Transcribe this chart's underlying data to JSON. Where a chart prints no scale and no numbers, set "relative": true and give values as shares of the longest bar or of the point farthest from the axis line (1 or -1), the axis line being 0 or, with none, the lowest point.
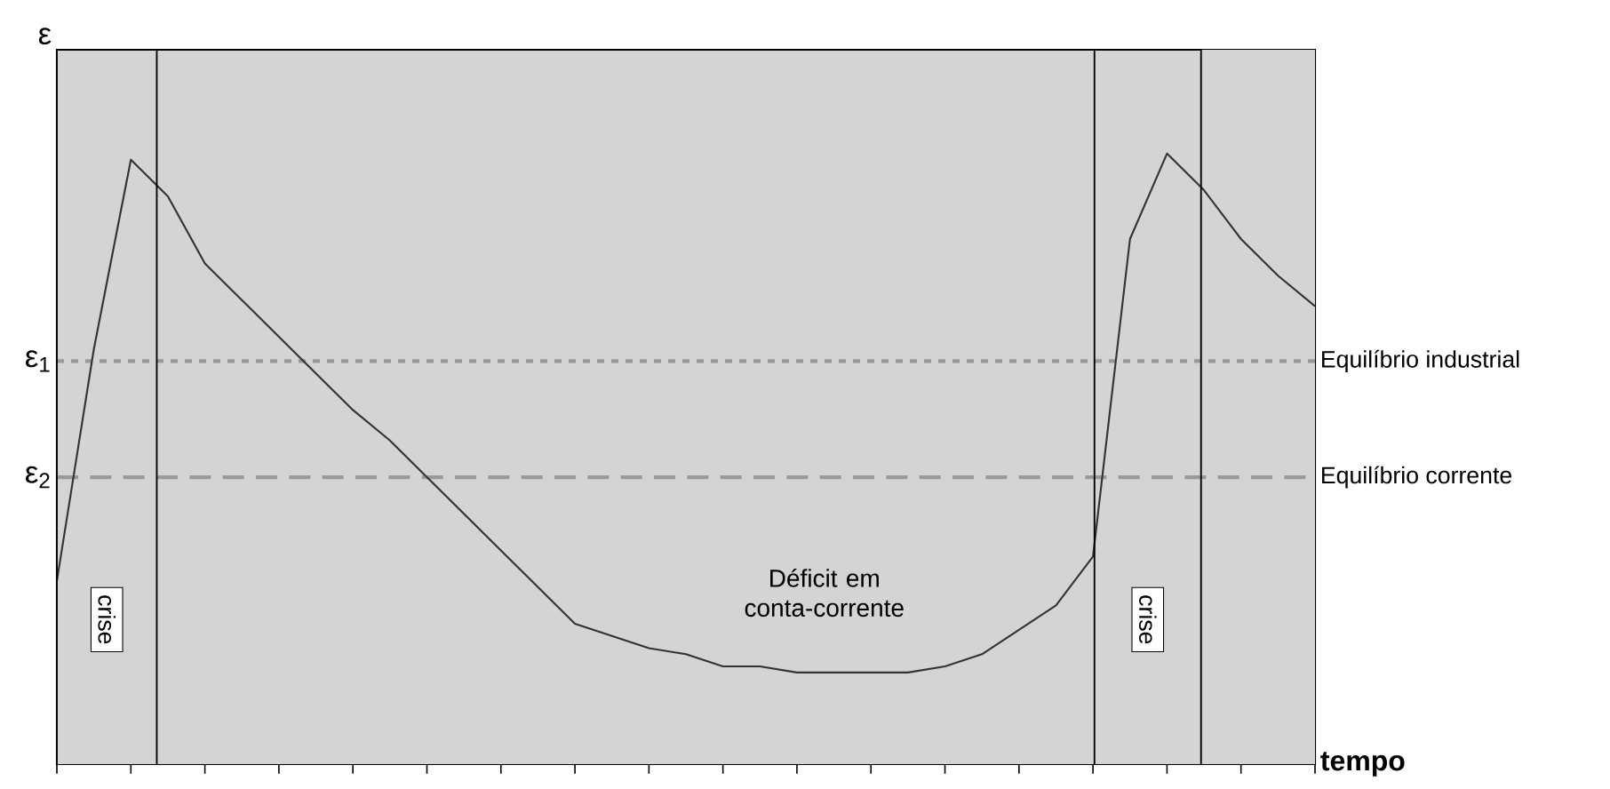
{
  "chart_data": {
    "type": "line",
    "relative": true,
    "xlabel": "tempo",
    "ylabel": "ε",
    "categories": [
      null,
      null,
      null,
      null,
      null,
      null,
      null,
      null,
      null,
      null,
      null,
      null,
      null,
      null,
      null,
      null,
      null,
      null,
      null,
      null,
      null,
      null,
      null,
      null,
      null,
      null,
      null,
      null,
      null,
      null,
      null,
      null,
      null,
      null,
      null
    ],
    "series": [
      {
        "color": "#333333",
        "values": [
          0.3,
          0.68,
          0.99,
          0.93,
          0.82,
          0.76,
          0.7,
          0.64,
          0.58,
          0.53,
          0.47,
          0.41,
          0.35,
          0.29,
          0.23,
          0.21,
          0.19,
          0.18,
          0.16,
          0.16,
          0.15,
          0.15,
          0.15,
          0.15,
          0.16,
          0.18,
          0.22,
          0.26,
          0.34,
          0.86,
          1,
          0.94,
          0.86,
          0.8,
          0.75
        ]
      }
    ],
    "ref_lines": [
      {
        "axis": "y",
        "value": 0.66,
        "label": "Equilíbrio industrial",
        "color": "#999999",
        "line_style": "dotted"
      },
      {
        "axis": "y",
        "value": 0.47,
        "label": "Equilíbrio corrente",
        "color": "#999999",
        "line_style": "dashed"
      }
    ],
    "annotations": [
      "ε$_{1}$",
      "ε$_{2}$",
      "Déficit em conta-corrente",
      "crise",
      "crise"
    ]
  }
}
